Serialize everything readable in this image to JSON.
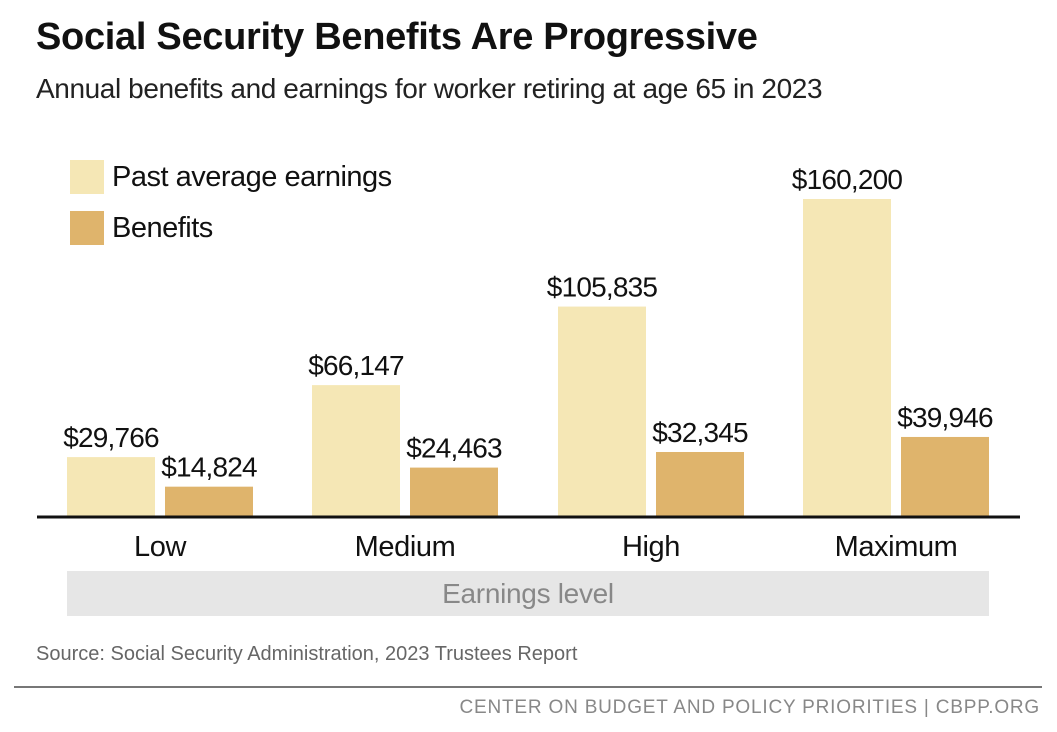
{
  "chart_data": {
    "type": "bar",
    "title": "Social Security Benefits Are Progressive",
    "subtitle": "Annual benefits and earnings for worker retiring at age 65 in 2023",
    "categories": [
      "Low",
      "Medium",
      "High",
      "Maximum"
    ],
    "series": [
      {
        "name": "Past average earnings",
        "color": "#f5e7b5",
        "values": [
          29766,
          66147,
          105835,
          160200
        ],
        "labels": [
          "$29,766",
          "$66,147",
          "$105,835",
          "$160,200"
        ]
      },
      {
        "name": "Benefits",
        "color": "#dfb46c",
        "values": [
          14824,
          24463,
          32345,
          39946
        ],
        "labels": [
          "$14,824",
          "$24,463",
          "$32,345",
          "$39,946"
        ]
      }
    ],
    "xlabel": "Earnings level",
    "ylabel": "",
    "ylim": [
      0,
      160200
    ],
    "grid": false,
    "legend": "top-left"
  },
  "source": "Source: Social Security Administration, 2023 Trustees Report",
  "footer": "CENTER ON BUDGET AND POLICY PRIORITIES | CBPP.ORG"
}
